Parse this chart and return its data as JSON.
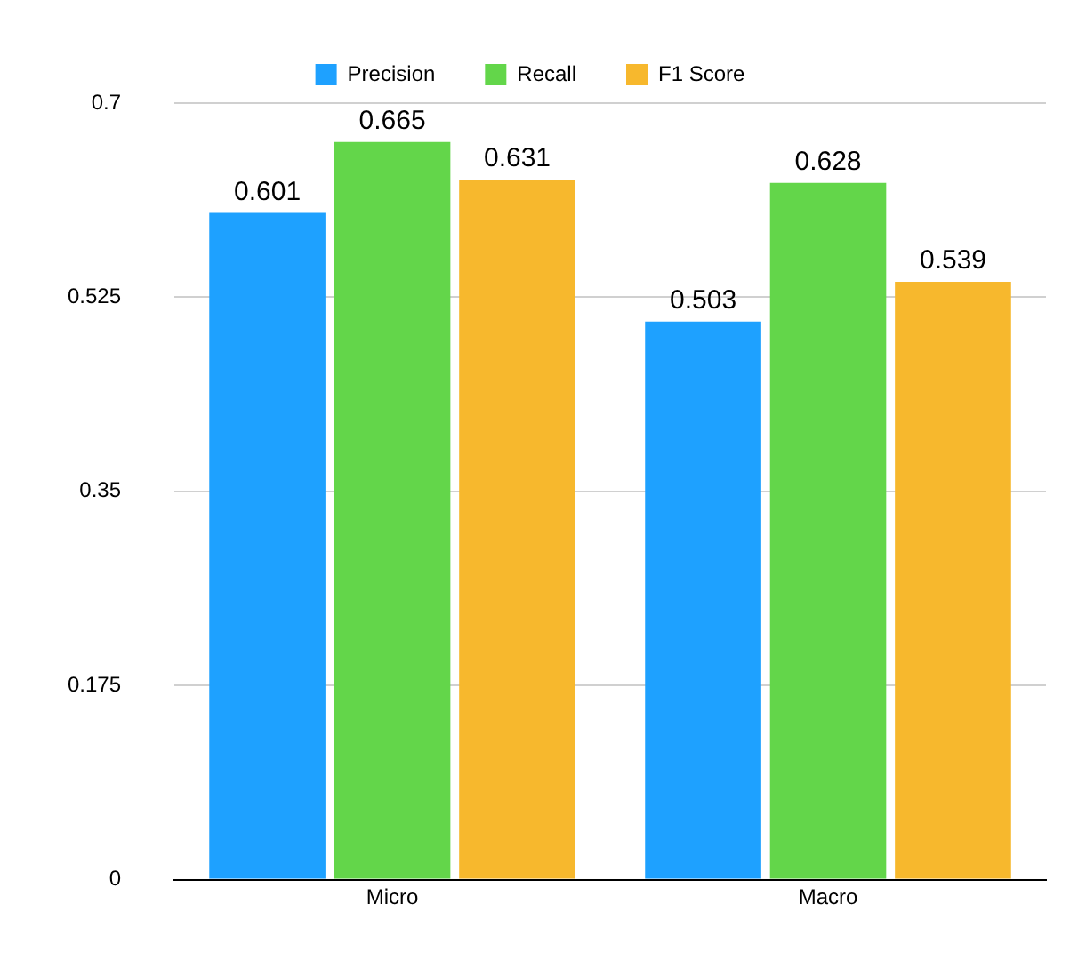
{
  "chart_data": {
    "type": "bar",
    "categories": [
      "Micro",
      "Macro"
    ],
    "series": [
      {
        "name": "Precision",
        "color": "#1ea1ff",
        "values": [
          0.601,
          0.503
        ]
      },
      {
        "name": "Recall",
        "color": "#63d64a",
        "values": [
          0.665,
          0.628
        ]
      },
      {
        "name": "F1 Score",
        "color": "#f7b82d",
        "values": [
          0.631,
          0.539
        ]
      }
    ],
    "ylim": [
      0,
      0.7
    ],
    "yticks": [
      0,
      0.175,
      0.35,
      0.525,
      0.7
    ],
    "grid": "y",
    "legend": "top",
    "data_labels": true
  }
}
